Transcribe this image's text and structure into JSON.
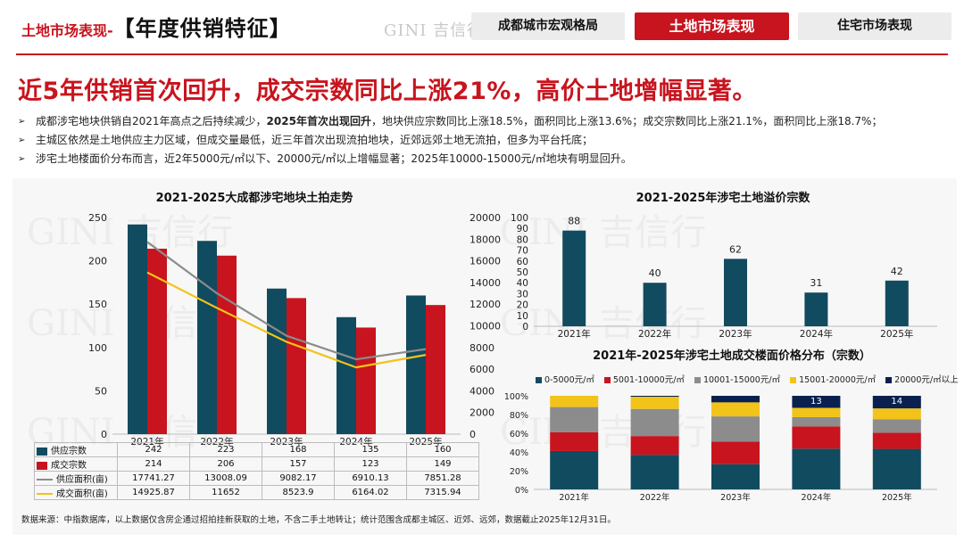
{
  "header": {
    "title_prefix": "土地市场表现-",
    "title_main": "【年度供销特征】",
    "logo_text": "GINI 吉信行",
    "tabs": [
      {
        "label": "成都城市宏观格局",
        "active": false
      },
      {
        "label": "土地市场表现",
        "active": true
      },
      {
        "label": "住宅市场表现",
        "active": false
      }
    ]
  },
  "headline": "近5年供销首次回升，成交宗数同比上涨21%，高价土地增幅显著。",
  "bullets": [
    {
      "before": "成都涉宅地块供销自2021年高点之后持续减少，",
      "bold": "2025年首次出现回升",
      "after": "，地块供应宗数同比上涨18.5%，面积同比上涨13.6%；成交宗数同比上涨21.1%，面积同比上涨18.7%；"
    },
    {
      "before": "主城区依然是土地供应主力区域，但成交量最低，近三年首次出现流拍地块，近郊远郊土地无流拍，但多为平台托底；",
      "bold": "",
      "after": ""
    },
    {
      "before": "涉宅土地楼面价分布而言，近2年5000元/㎡以下、20000元/㎡以上增幅显著；2025年10000-15000元/㎡地块有明显回升。",
      "bold": "",
      "after": ""
    }
  ],
  "chart_data": [
    {
      "type": "bar",
      "title": "2021-2025大成都涉宅地块土拍走势",
      "categories": [
        "2021年",
        "2022年",
        "2023年",
        "2024年",
        "2025年"
      ],
      "series": [
        {
          "name": "供应宗数",
          "kind": "bar",
          "axis": "left",
          "color": "#114b5f",
          "values": [
            242,
            223,
            168,
            135,
            160
          ],
          "labels": [
            "242",
            "223",
            "168",
            "135",
            "160"
          ]
        },
        {
          "name": "成交宗数",
          "kind": "bar",
          "axis": "left",
          "color": "#c8141e",
          "values": [
            214,
            206,
            157,
            123,
            149
          ],
          "labels": [
            "214",
            "206",
            "157",
            "123",
            "149"
          ]
        },
        {
          "name": "供应面积(亩)",
          "kind": "line",
          "axis": "right",
          "color": "#8c8c8c",
          "values": [
            17741.27,
            13008.09,
            9082.17,
            6910.13,
            7851.28
          ],
          "labels": [
            "17741.27",
            "13008.09",
            "9082.17",
            "6910.13",
            "7851.28"
          ]
        },
        {
          "name": "成交面积(亩)",
          "kind": "line",
          "axis": "right",
          "color": "#f2c318",
          "values": [
            14925.87,
            11652,
            8523.9,
            6164.02,
            7315.94
          ],
          "labels": [
            "14925.87",
            "11652",
            "8523.9",
            "6164.02",
            "7315.94"
          ]
        }
      ],
      "ylim_left": [
        0,
        250
      ],
      "yticks_left": [
        "0",
        "50",
        "100",
        "150",
        "200",
        "250"
      ],
      "ylim_right": [
        0,
        20000
      ],
      "yticks_right": [
        "0",
        "2000",
        "4000",
        "6000",
        "8000",
        "10000",
        "12000",
        "14000",
        "16000",
        "18000",
        "20000"
      ]
    },
    {
      "type": "bar",
      "title": "2021-2025年涉宅土地溢价宗数",
      "categories": [
        "2021年",
        "2022年",
        "2023年",
        "2024年",
        "2025年"
      ],
      "values": [
        88,
        40,
        62,
        31,
        42
      ],
      "color": "#114b5f",
      "ylim": [
        0,
        100
      ],
      "yticks": [
        "0",
        "10",
        "20",
        "30",
        "40",
        "50",
        "60",
        "70",
        "80",
        "90",
        "100"
      ]
    },
    {
      "type": "bar",
      "stacked_percent": true,
      "title": "2021年-2025年涉宅土地成交楼面价格分布（宗数）",
      "categories": [
        "2021年",
        "2022年",
        "2023年",
        "2024年",
        "2025年"
      ],
      "series": [
        {
          "name": "0-5000元/㎡",
          "color": "#114b5f",
          "values": [
            41,
            37,
            27,
            44,
            45
          ]
        },
        {
          "name": "5001-10000元/㎡",
          "color": "#c8141e",
          "values": [
            20,
            20,
            24,
            24,
            18
          ]
        },
        {
          "name": "10001-15000元/㎡",
          "color": "#8c8c8c",
          "values": [
            27,
            29,
            27,
            10,
            15
          ]
        },
        {
          "name": "15001-20000元/㎡",
          "color": "#f2c318",
          "values": [
            12,
            13,
            15,
            10,
            12
          ]
        },
        {
          "name": "20000元/㎡以上",
          "color": "#0a2150",
          "values": [
            0,
            1,
            7,
            13,
            14
          ]
        }
      ],
      "visible_labels": {
        "2024年": "13",
        "2025年": "14"
      },
      "ylim": [
        0,
        100
      ],
      "yticks": [
        "0%",
        "20%",
        "40%",
        "60%",
        "80%",
        "100%"
      ]
    }
  ],
  "source": "数据来源：中指数据库，以上数据仅含房企通过招拍挂新获取的土地，不含二手土地转让；统计范围含成都主城区、近郊、远郊，数据截止2025年12月31日。"
}
